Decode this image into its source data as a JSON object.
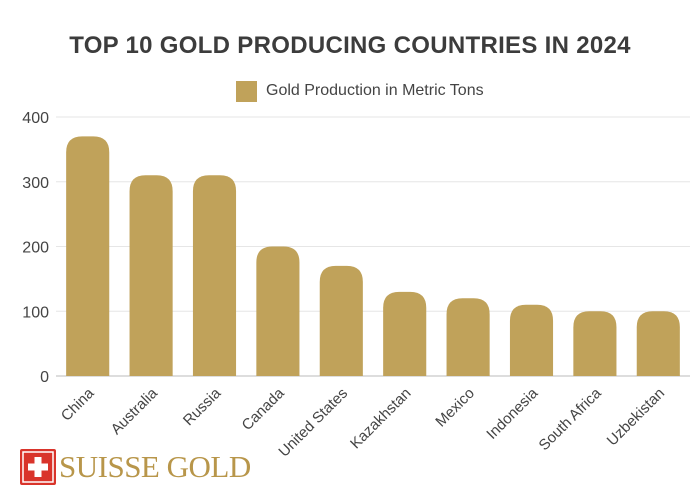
{
  "chart_data": {
    "type": "bar",
    "title": "TOP 10 GOLD PRODUCING COUNTRIES IN 2024",
    "xlabel": "",
    "ylabel": "",
    "categories": [
      "China",
      "Australia",
      "Russia",
      "Canada",
      "United States",
      "Kazakhstan",
      "Mexico",
      "Indonesia",
      "South Africa",
      "Uzbekistan"
    ],
    "series": [
      {
        "name": "Gold Production in Metric Tons",
        "values": [
          370,
          310,
          310,
          200,
          170,
          130,
          120,
          110,
          100,
          100
        ]
      }
    ],
    "ylim": [
      0,
      400
    ],
    "yticks": [
      0,
      100,
      200,
      300,
      400
    ],
    "grid": true,
    "legend_position": "top",
    "bar_color": "#c0a25a"
  },
  "brand": {
    "name": "SUISSE GOLD",
    "logo_color": "#d9342b",
    "text_color": "#b8964a"
  },
  "colors": {
    "gridline": "#e6e6e6",
    "axis_text": "#444444",
    "baseline": "#bbbbbb"
  }
}
